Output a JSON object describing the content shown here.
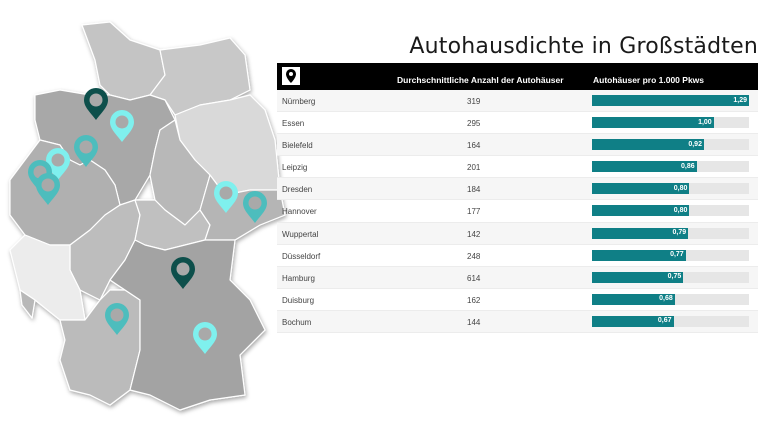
{
  "title": "Autohausdichte in Großstädten",
  "table": {
    "header_icon": "map-pin-icon",
    "columns": [
      "",
      "Durchschnittliche Anzahl der Autohäuser",
      "Autohäuser pro 1.000 Pkws"
    ],
    "max_value": 1.29,
    "bar_color": "#0f7f86",
    "rows": [
      {
        "city": "Nürnberg",
        "count": "319",
        "ratio": 1.29,
        "label": "1,29"
      },
      {
        "city": "Essen",
        "count": "295",
        "ratio": 1.0,
        "label": "1,00"
      },
      {
        "city": "Bielefeld",
        "count": "164",
        "ratio": 0.92,
        "label": "0,92"
      },
      {
        "city": "Leipzig",
        "count": "201",
        "ratio": 0.86,
        "label": "0,86"
      },
      {
        "city": "Dresden",
        "count": "184",
        "ratio": 0.8,
        "label": "0,80"
      },
      {
        "city": "Hannover",
        "count": "177",
        "ratio": 0.8,
        "label": "0,80"
      },
      {
        "city": "Wuppertal",
        "count": "142",
        "ratio": 0.79,
        "label": "0,79"
      },
      {
        "city": "Düsseldorf",
        "count": "248",
        "ratio": 0.77,
        "label": "0,77"
      },
      {
        "city": "Hamburg",
        "count": "614",
        "ratio": 0.75,
        "label": "0,75"
      },
      {
        "city": "Duisburg",
        "count": "162",
        "ratio": 0.68,
        "label": "0,68"
      },
      {
        "city": "Bochum",
        "count": "144",
        "ratio": 0.67,
        "label": "0,67"
      }
    ]
  },
  "map": {
    "pin_colors": {
      "dark": "#0d4f4b",
      "mid": "#4dbdbd",
      "light": "#7ff0ee"
    }
  }
}
